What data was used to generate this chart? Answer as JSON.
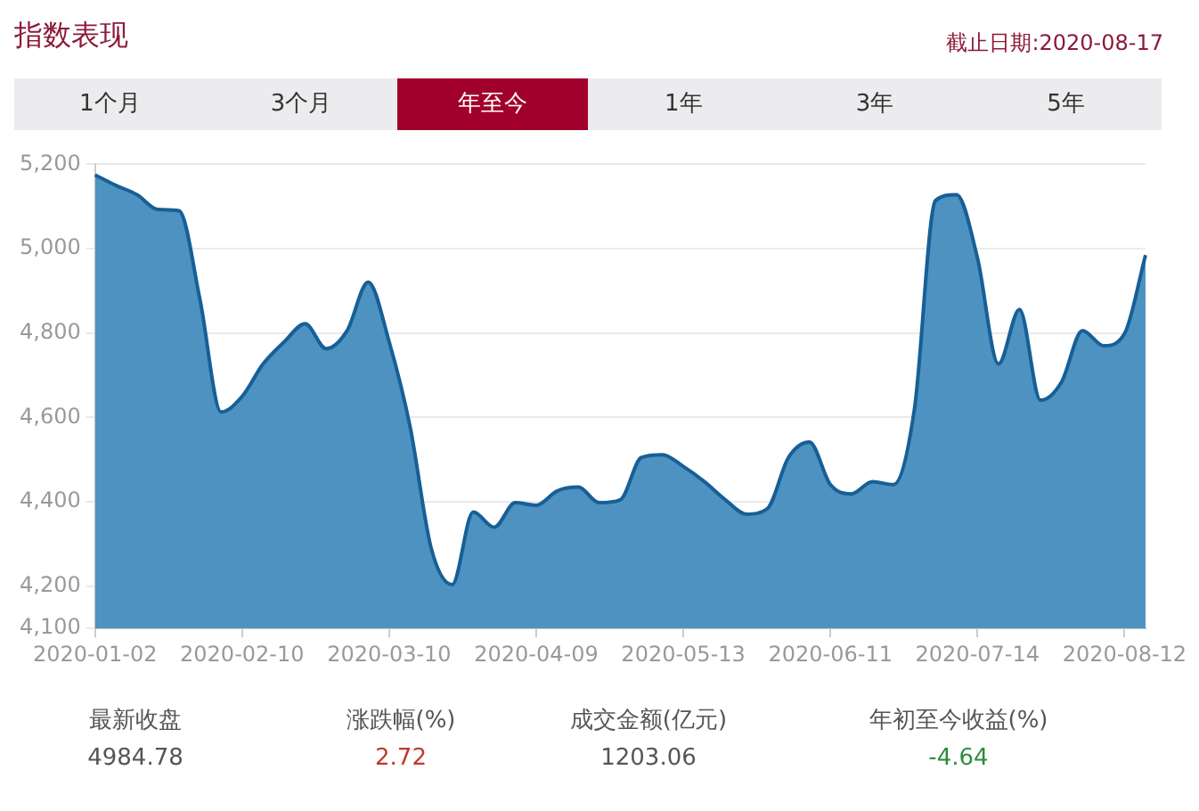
{
  "chart_data": {
    "type": "area",
    "title": "指数表现",
    "subtitle": "截止日期:2020-08-17",
    "categories": [
      "2020-01-02",
      null,
      null,
      null,
      null,
      null,
      null,
      "2020-02-10",
      null,
      null,
      null,
      null,
      null,
      null,
      "2020-03-10",
      null,
      null,
      null,
      null,
      null,
      null,
      "2020-04-09",
      null,
      null,
      null,
      null,
      null,
      null,
      "2020-05-13",
      null,
      null,
      null,
      null,
      null,
      null,
      "2020-06-11",
      null,
      null,
      null,
      null,
      null,
      null,
      "2020-07-14",
      null,
      null,
      null,
      null,
      null,
      null,
      "2020-08-12",
      null
    ],
    "series": [
      {
        "color": "#4d92c1",
        "values": [
          5175,
          5150,
          5128,
          5093,
          5090,
          4878,
          4613,
          4650,
          4727,
          4779,
          4822,
          4763,
          4806,
          4921,
          4779,
          4577,
          4290,
          4204,
          4376,
          4340,
          4398,
          4392,
          4426,
          4435,
          4398,
          4405,
          4505,
          4512,
          4484,
          4448,
          4405,
          4371,
          4384,
          4505,
          4542,
          4441,
          4419,
          4448,
          4441,
          4620,
          5114,
          5128,
          4978,
          4727,
          4856,
          4641,
          4684,
          4806,
          4770,
          4799,
          4985
        ]
      }
    ],
    "ylim": [
      4100,
      5200
    ],
    "yticks": [
      {
        "value": 4100,
        "label": "4,100"
      },
      {
        "value": 4200,
        "label": "4,200"
      },
      {
        "value": 4400,
        "label": "4,400"
      },
      {
        "value": 4600,
        "label": "4,600"
      },
      {
        "value": 4800,
        "label": "4,800"
      },
      {
        "value": 5000,
        "label": "5,000"
      },
      {
        "value": 5200,
        "label": "5,200"
      }
    ],
    "grid": "y",
    "legend": false,
    "annotations": [
      "1个月",
      "3个月",
      "年至今",
      "1年",
      "3年",
      "5年",
      "最新收盘",
      "4984.78",
      "涨跌幅(%)",
      "2.72",
      "成交金额(亿元)",
      "1203.06",
      "年初至今收益(%)",
      "-4.64"
    ]
  }
}
